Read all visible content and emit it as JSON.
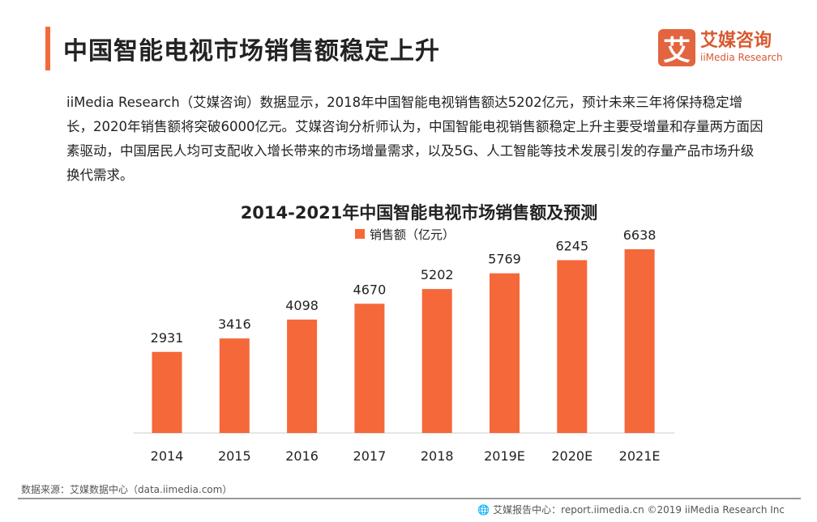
{
  "header": {
    "title": "中国智能电视市场销售额稳定上升",
    "logo_mark": "艾",
    "logo_cn": "艾媒咨询",
    "logo_en": "iiMedia Research"
  },
  "description": "iiMedia Research（艾媒咨询）数据显示，2018年中国智能电视销售额达5202亿元，预计未来三年将保持稳定增长，2020年销售额将突破6000亿元。艾媒咨询分析师认为，中国智能电视销售额稳定上升主要受增量和存量两方面因素驱动，中国居民人均可支配收入增长带来的市场增量需求，以及5G、人工智能等技术发展引发的存量产品市场升级换代需求。",
  "source": "数据来源：艾媒数据中心（data.iimedia.com）",
  "footer": {
    "icon": "globe-icon",
    "text": "艾媒报告中心：report.iimedia.cn ©2019  iiMedia Research  Inc"
  },
  "colors": {
    "accent": "#f26a3a",
    "bar": "#f4683a"
  },
  "chart_data": {
    "type": "bar",
    "title": "2014-2021年中国智能电视市场销售额及预测",
    "categories": [
      "2014",
      "2015",
      "2016",
      "2017",
      "2018",
      "2019E",
      "2020E",
      "2021E"
    ],
    "series": [
      {
        "name": "销售额（亿元）",
        "values": [
          2931,
          3416,
          4098,
          4670,
          5202,
          5769,
          6245,
          6638
        ]
      }
    ],
    "ylim": [
      0,
      6638
    ],
    "legend": "top",
    "grid": false
  }
}
